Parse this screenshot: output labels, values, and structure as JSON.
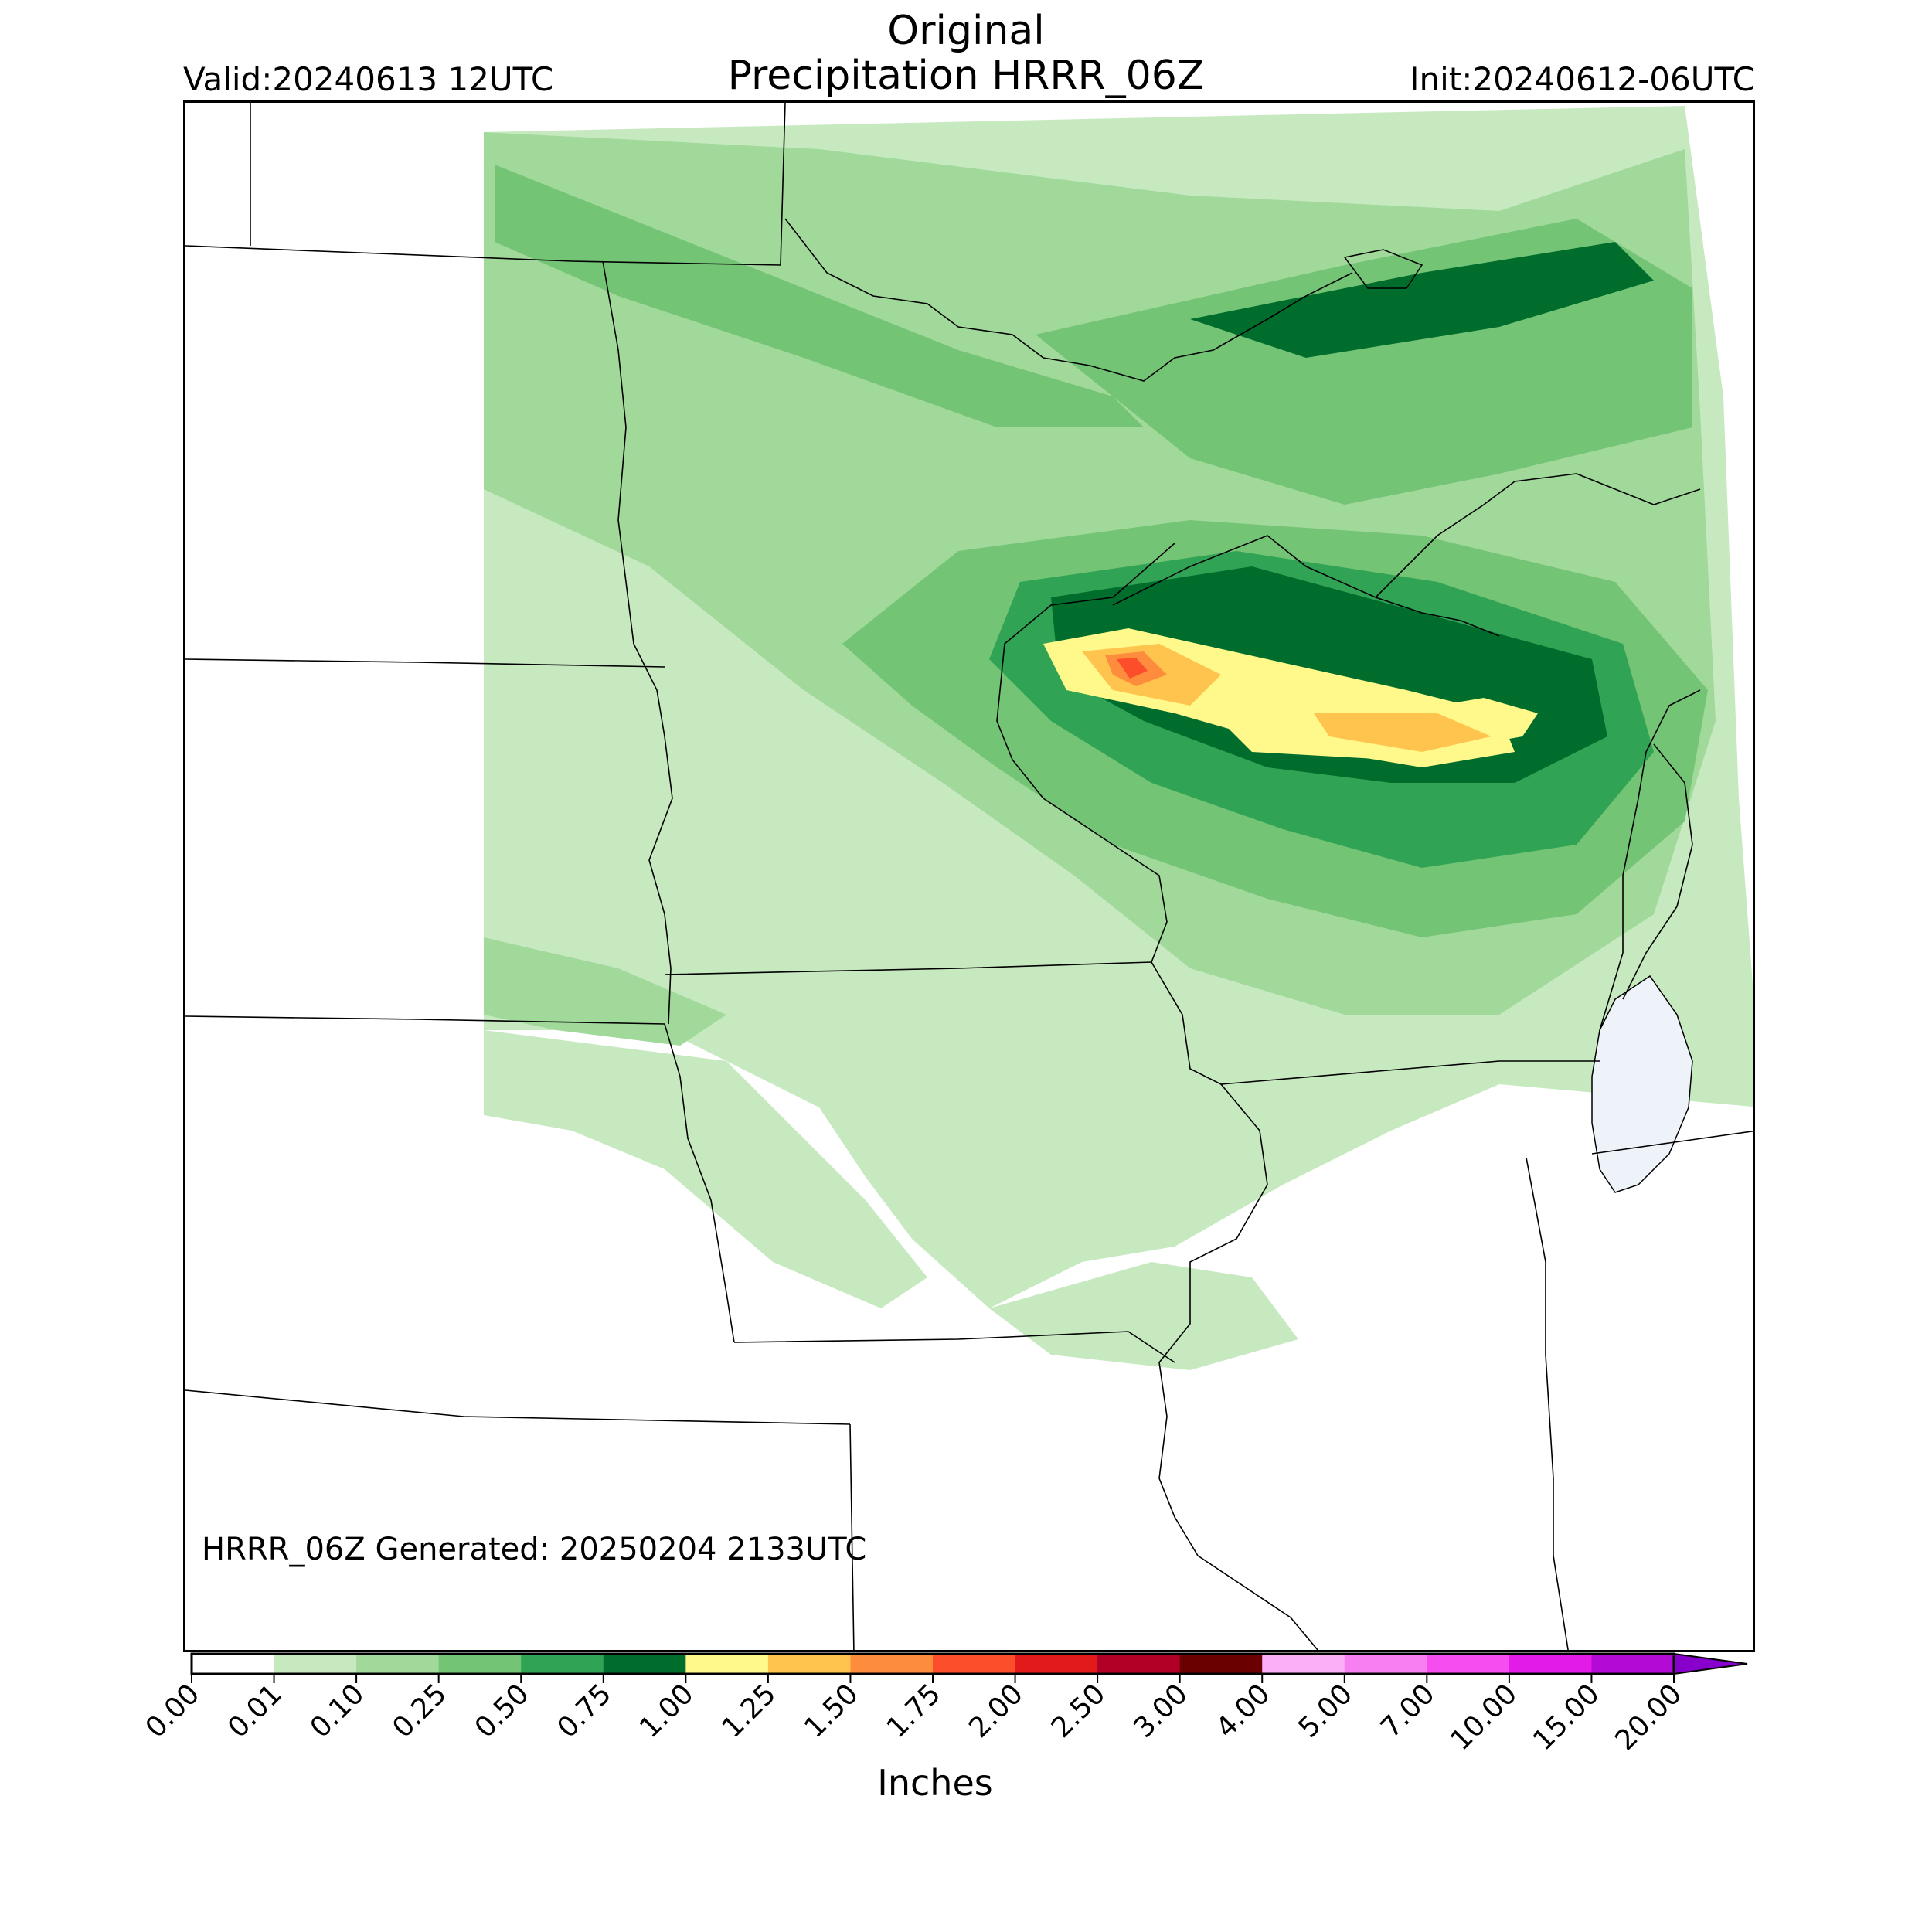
{
  "header": {
    "title_line1": "Original",
    "title_line2": "Precipitation HRRR_06Z",
    "valid": "Valid:20240613 12UTC",
    "init": "Init:20240612-06UTC"
  },
  "map": {
    "annotation": "HRRR_06Z Generated: 20250204 2133UTC"
  },
  "colorbar": {
    "label": "Inches",
    "extend": "max",
    "ticks": [
      "0.00",
      "0.01",
      "0.10",
      "0.25",
      "0.50",
      "0.75",
      "1.00",
      "1.25",
      "1.50",
      "1.75",
      "2.00",
      "2.50",
      "3.00",
      "4.00",
      "5.00",
      "7.00",
      "10.00",
      "15.00",
      "20.00"
    ],
    "colors": [
      "#ffffff",
      "#c7e9c0",
      "#a1d99b",
      "#74c476",
      "#31a354",
      "#006d2c",
      "#fff98b",
      "#ffc44e",
      "#fd8d3c",
      "#fc4e2a",
      "#e31a1c",
      "#b10026",
      "#6b0000",
      "#f9b0f4",
      "#f77ff2",
      "#f54df0",
      "#e21be8",
      "#b30ad6",
      "#8800cc"
    ]
  }
}
